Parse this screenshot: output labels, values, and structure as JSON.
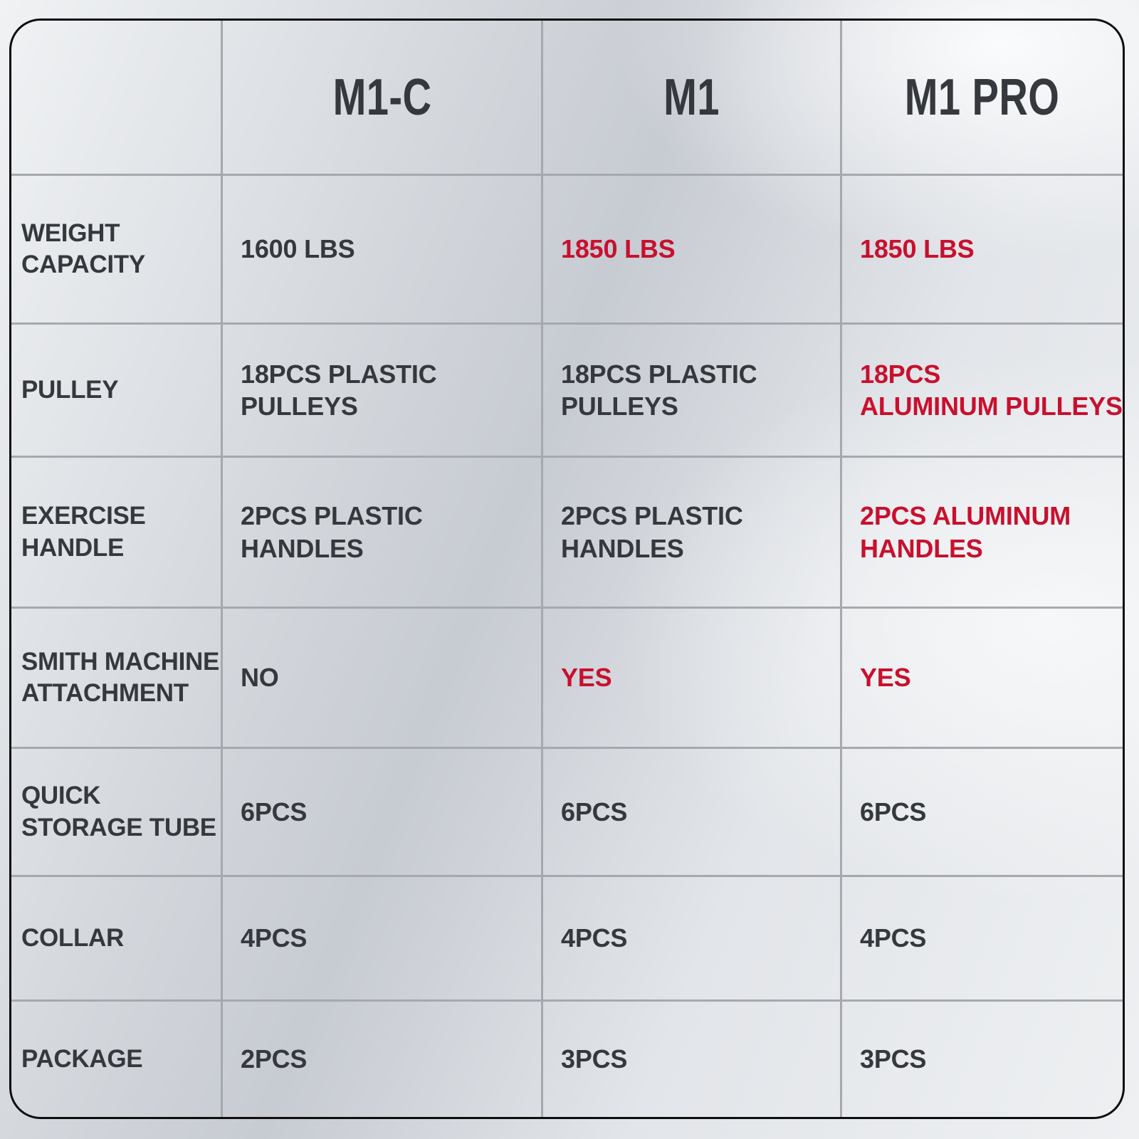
{
  "colors": {
    "accent_red": "#C8102E",
    "text_dark": "#35383D",
    "grid_line": "#A5A9AF",
    "outer_border": "#0D0D0D"
  },
  "table": {
    "columns": [
      "M1-C",
      "M1",
      "M1 PRO"
    ],
    "rows": [
      {
        "label": "WEIGHT\nCAPACITY",
        "values": [
          {
            "text": "1600 LBS",
            "red": false
          },
          {
            "text": "1850 LBS",
            "red": true
          },
          {
            "text": "1850 LBS",
            "red": true
          }
        ]
      },
      {
        "label": "PULLEY",
        "values": [
          {
            "text": "18PCS PLASTIC\nPULLEYS",
            "red": false
          },
          {
            "text": "18PCS PLASTIC\nPULLEYS",
            "red": false
          },
          {
            "text": "18PCS\nALUMINUM PULLEYS",
            "red": true
          }
        ]
      },
      {
        "label": "EXERCISE\nHANDLE",
        "values": [
          {
            "text": "2PCS PLASTIC\nHANDLES",
            "red": false
          },
          {
            "text": "2PCS PLASTIC\nHANDLES",
            "red": false
          },
          {
            "text": "2PCS ALUMINUM\nHANDLES",
            "red": true
          }
        ]
      },
      {
        "label": "SMITH MACHINE\nATTACHMENT",
        "values": [
          {
            "text": "NO",
            "red": false
          },
          {
            "text": "YES",
            "red": true
          },
          {
            "text": "YES",
            "red": true
          }
        ]
      },
      {
        "label": "QUICK\nSTORAGE TUBE",
        "values": [
          {
            "text": "6PCS",
            "red": false
          },
          {
            "text": "6PCS",
            "red": false
          },
          {
            "text": "6PCS",
            "red": false
          }
        ]
      },
      {
        "label": "COLLAR",
        "values": [
          {
            "text": "4PCS",
            "red": false
          },
          {
            "text": "4PCS",
            "red": false
          },
          {
            "text": "4PCS",
            "red": false
          }
        ]
      },
      {
        "label": "PACKAGE",
        "values": [
          {
            "text": "2PCS",
            "red": false
          },
          {
            "text": "3PCS",
            "red": false
          },
          {
            "text": "3PCS",
            "red": false
          }
        ]
      }
    ]
  },
  "chart_data": {
    "type": "table",
    "title": "",
    "columns": [
      "",
      "M1-C",
      "M1",
      "M1 PRO"
    ],
    "rows": [
      [
        "WEIGHT CAPACITY",
        "1600 LBS",
        "1850 LBS",
        "1850 LBS"
      ],
      [
        "PULLEY",
        "18PCS PLASTIC PULLEYS",
        "18PCS PLASTIC PULLEYS",
        "18PCS ALUMINUM PULLEYS"
      ],
      [
        "EXERCISE HANDLE",
        "2PCS PLASTIC HANDLES",
        "2PCS PLASTIC HANDLES",
        "2PCS ALUMINUM HANDLES"
      ],
      [
        "SMITH MACHINE ATTACHMENT",
        "NO",
        "YES",
        "YES"
      ],
      [
        "QUICK STORAGE TUBE",
        "6PCS",
        "6PCS",
        "6PCS"
      ],
      [
        "COLLAR",
        "4PCS",
        "4PCS",
        "4PCS"
      ],
      [
        "PACKAGE",
        "2PCS",
        "3PCS",
        "3PCS"
      ]
    ],
    "legend_position": "none",
    "grid": true,
    "highlight_color": "#C8102E",
    "highlighted_cells_note": "red text marks upgraded specs of M1 and M1 PRO"
  }
}
